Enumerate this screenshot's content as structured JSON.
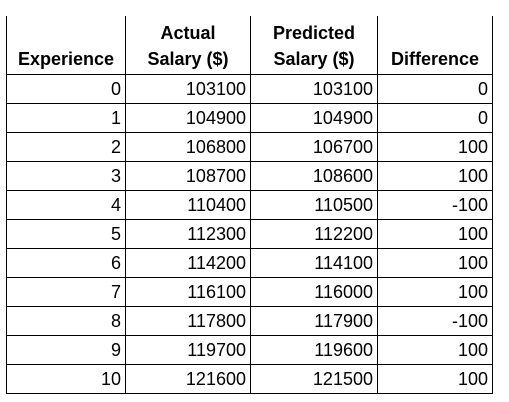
{
  "table": {
    "headers": [
      [
        "Experience"
      ],
      [
        "Actual",
        "Salary ($)"
      ],
      [
        "Predicted",
        "Salary ($)"
      ],
      [
        "Difference"
      ]
    ],
    "rows": [
      [
        "0",
        "103100",
        "103100",
        "0"
      ],
      [
        "1",
        "104900",
        "104900",
        "0"
      ],
      [
        "2",
        "106800",
        "106700",
        "100"
      ],
      [
        "3",
        "108700",
        "108600",
        "100"
      ],
      [
        "4",
        "110400",
        "110500",
        "-100"
      ],
      [
        "5",
        "112300",
        "112200",
        "100"
      ],
      [
        "6",
        "114200",
        "114100",
        "100"
      ],
      [
        "7",
        "116100",
        "116000",
        "100"
      ],
      [
        "8",
        "117800",
        "117900",
        "-100"
      ],
      [
        "9",
        "119700",
        "119600",
        "100"
      ],
      [
        "10",
        "121600",
        "121500",
        "100"
      ]
    ]
  }
}
